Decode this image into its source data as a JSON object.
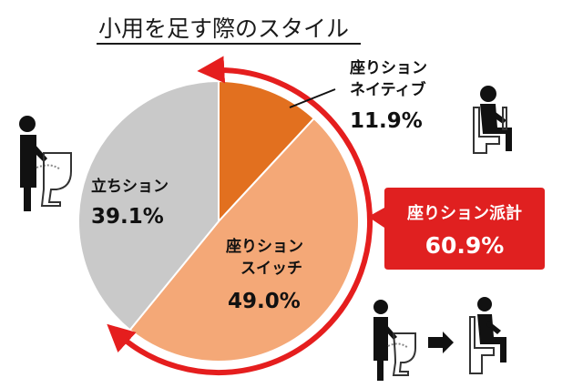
{
  "chart_data": {
    "type": "pie",
    "title": "小用を足す際のスタイル",
    "slices": [
      {
        "label_lines": [
          "座りション",
          "ネイティブ"
        ],
        "value": 11.9,
        "value_text": "11.9%",
        "color": "#e2701f"
      },
      {
        "label_lines": [
          "座りション",
          "スイッチ"
        ],
        "value": 49.0,
        "value_text": "49.0%",
        "color": "#f4a877"
      },
      {
        "label_lines": [
          "立ちション"
        ],
        "value": 39.1,
        "value_text": "39.1%",
        "color": "#c9c9c9"
      }
    ],
    "callout": {
      "label": "座りション派計",
      "value_text": "60.9%",
      "color": "#e02020"
    },
    "arc_color": "#e51e1e"
  },
  "icons": [
    "standing-urination-icon",
    "sitting-on-toilet-icon",
    "standing-to-sitting-icon"
  ]
}
